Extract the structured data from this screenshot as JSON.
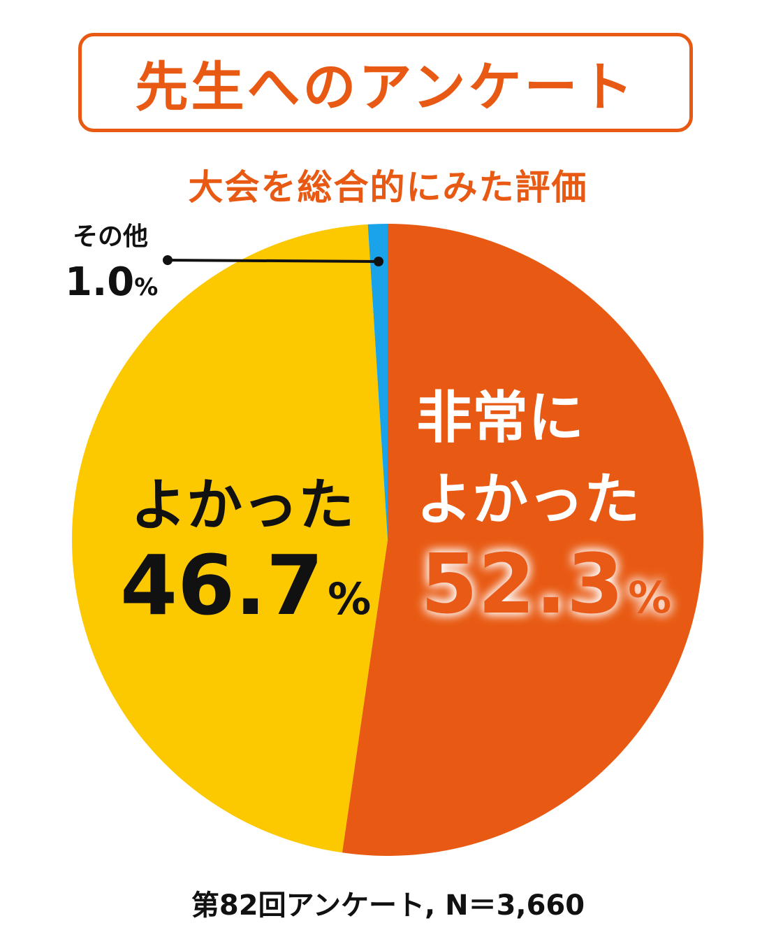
{
  "title": "先生へのアンケート",
  "subtitle": "大会を総合的にみた評価",
  "footnote": "第82回アンケート, N＝3,660",
  "colors": {
    "accent": "#e85a13",
    "very_good": "#e85a13",
    "good": "#fcc800",
    "other": "#1aa3e8",
    "text_dark": "#111111",
    "text_light": "#ffffff"
  },
  "chart_data": {
    "type": "pie",
    "title": "大会を総合的にみた評価",
    "unit": "%",
    "start": "top",
    "direction": "clockwise",
    "slices": [
      {
        "label_line1": "非常に",
        "label_line2": "よかった",
        "value": 52.3,
        "value_text": "52.3",
        "color": "#e85a13"
      },
      {
        "label_line1": "",
        "label_line2": "よかった",
        "value": 46.7,
        "value_text": "46.7",
        "color": "#fcc800"
      },
      {
        "label_line1": "",
        "label_line2": "その他",
        "value": 1.0,
        "value_text": "1.0",
        "color": "#1aa3e8"
      }
    ]
  }
}
